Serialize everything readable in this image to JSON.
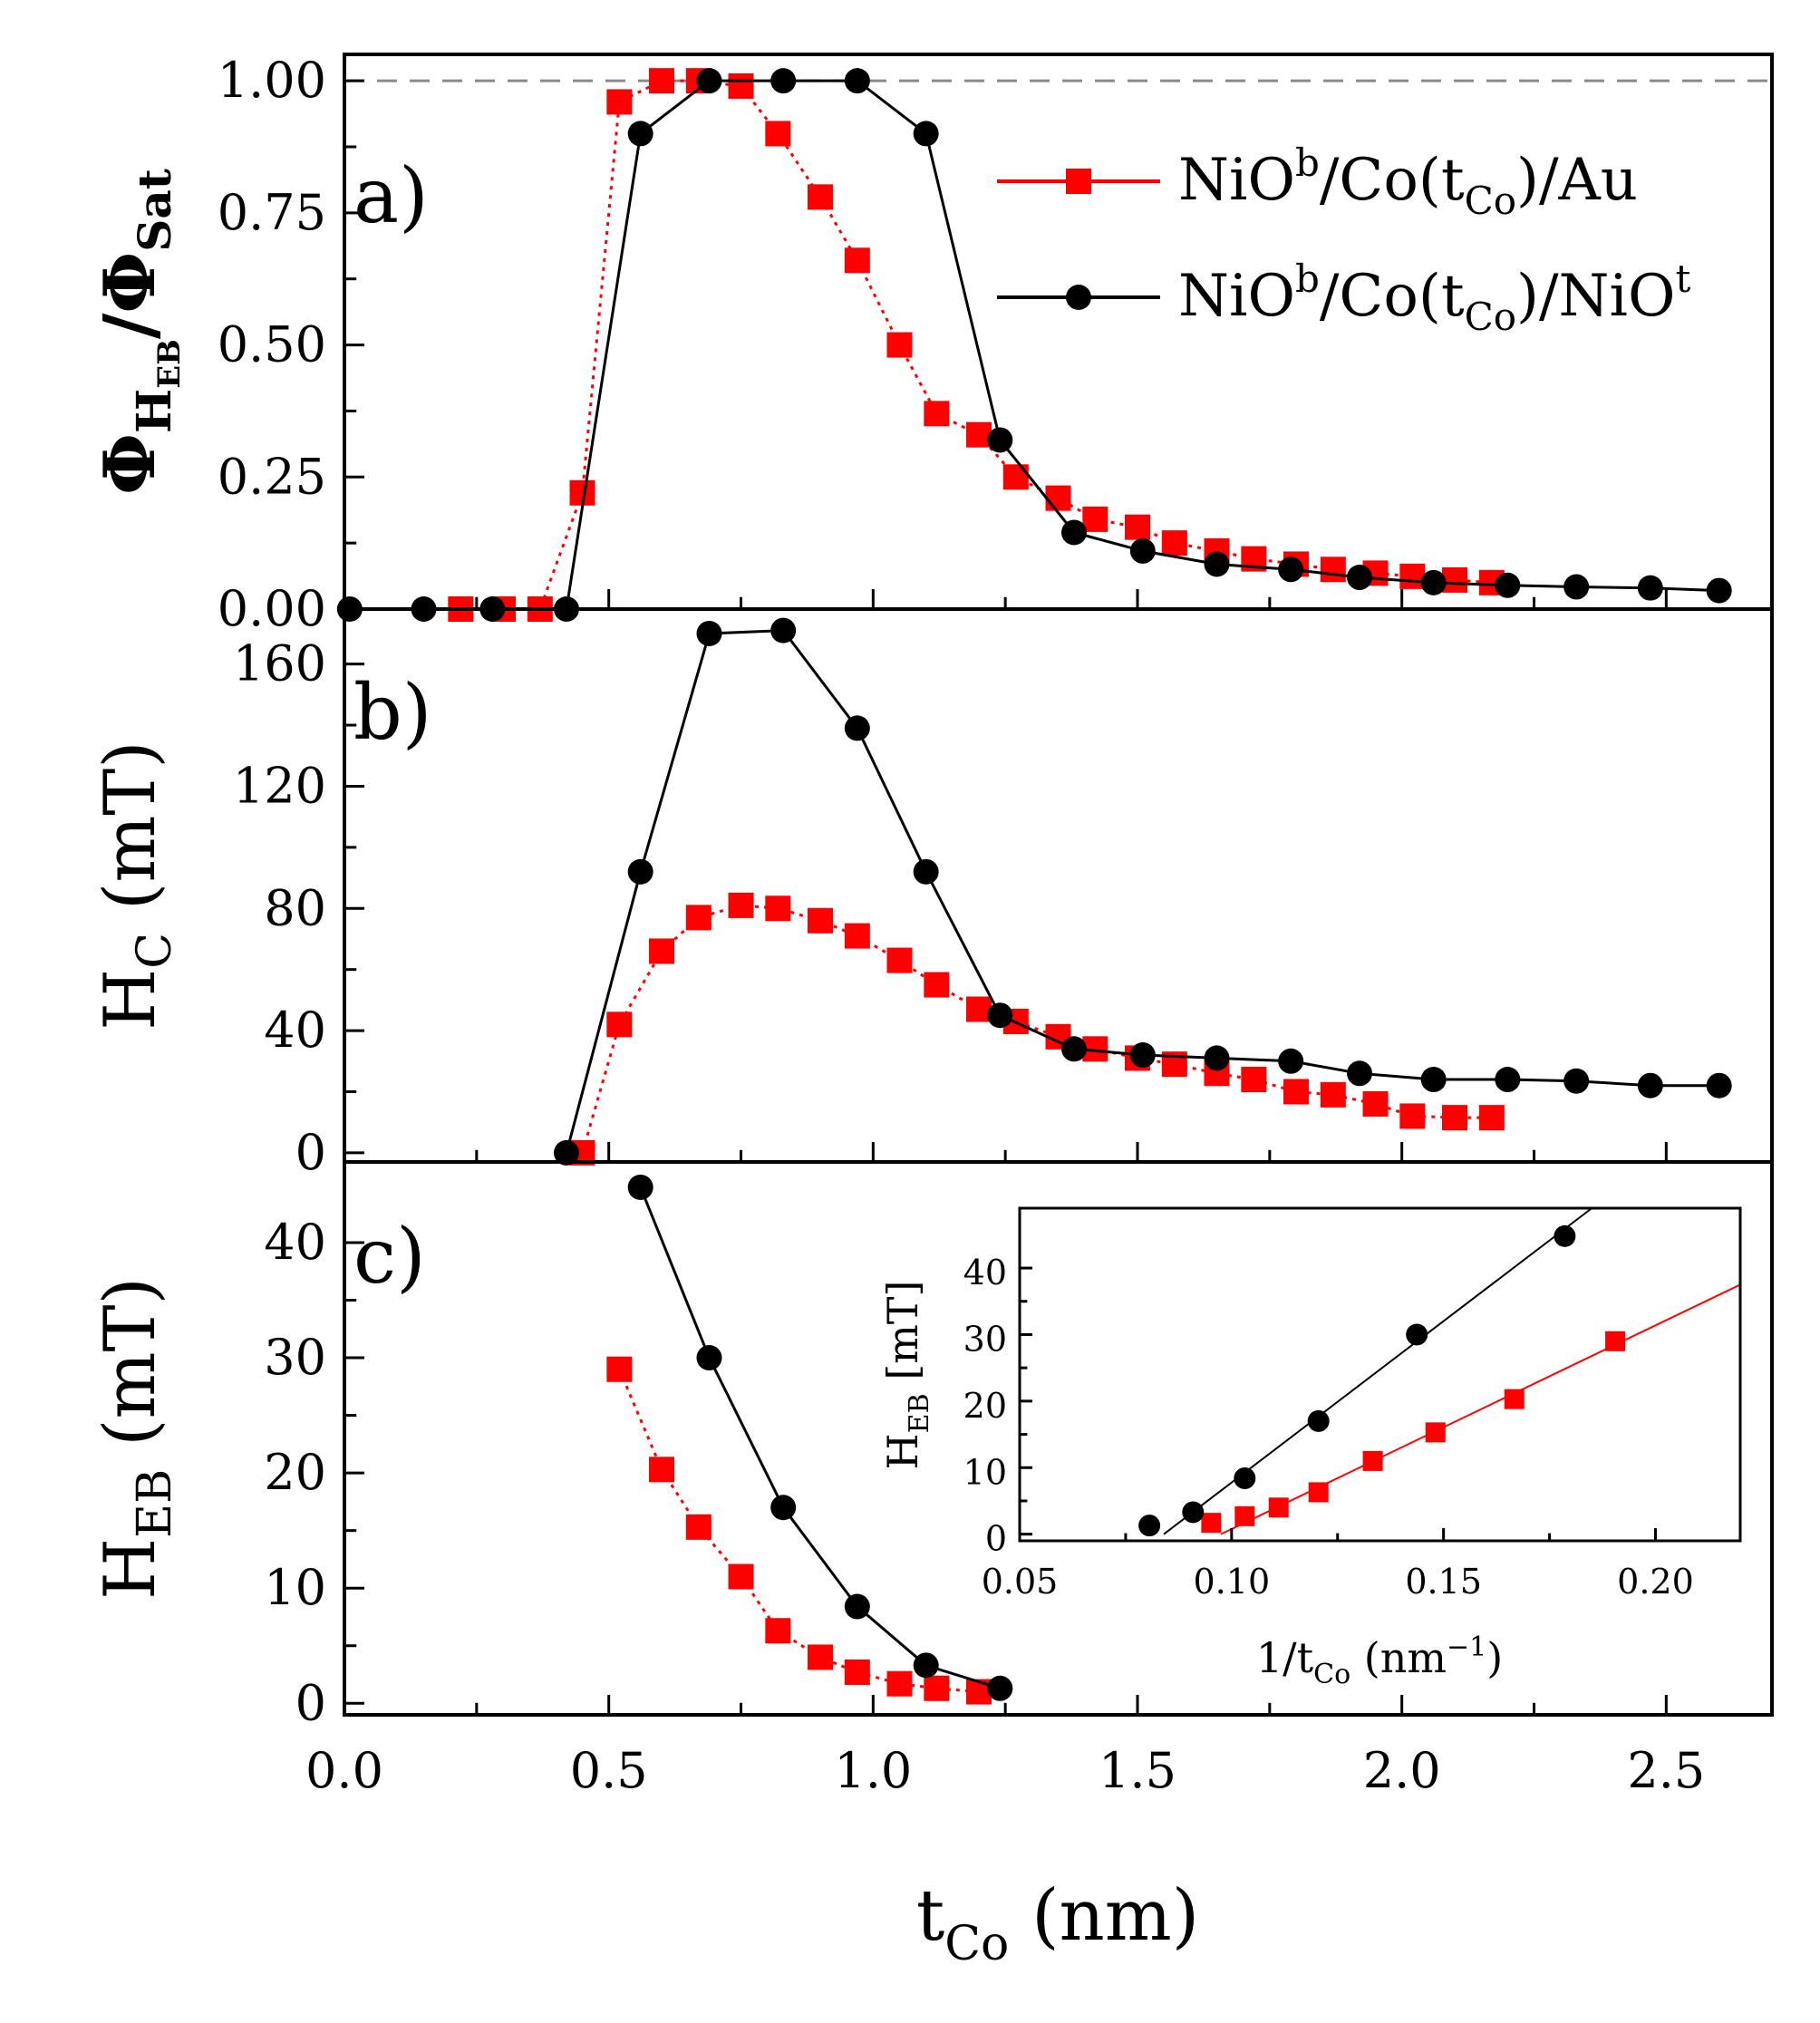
{
  "chart_data": [
    {
      "panel": "a)",
      "type": "line",
      "ylabel": {
        "main": "Φ",
        "sub1": "H",
        "sub2": "EB",
        "mid": "/Φ",
        "sub3": "Sat"
      },
      "xlim": [
        0,
        2.7
      ],
      "ylim": [
        0,
        1.05
      ],
      "yticks": [
        0,
        0.25,
        0.5,
        0.75,
        1.0
      ],
      "ytick_labels": [
        "0.00",
        "0.25",
        "0.50",
        "0.75",
        "1.00"
      ],
      "reference_line": {
        "y": 1.0,
        "style": "dashed",
        "color": "#8a8a8a"
      },
      "legend": {
        "position": "top-right",
        "entries": [
          {
            "series": "NiO/Co/Au",
            "parts": [
              "NiO",
              "b",
              "/Co(t",
              "Co",
              ")/Au"
            ]
          },
          {
            "series": "NiO/Co/NiO",
            "parts": [
              "NiO",
              "b",
              "/Co(t",
              "Co",
              ")/NiO",
              "t"
            ]
          }
        ]
      },
      "series": [
        {
          "name": "NiO/Co/Au",
          "color": "#ff0000",
          "marker": "square",
          "linestyle": "dotted",
          "x": [
            0.22,
            0.3,
            0.37,
            0.45,
            0.52,
            0.6,
            0.67,
            0.75,
            0.82,
            0.9,
            0.97,
            1.05,
            1.12,
            1.2,
            1.27,
            1.35,
            1.42,
            1.5,
            1.57,
            1.65,
            1.72,
            1.8,
            1.87,
            1.95,
            2.02,
            2.1,
            2.17
          ],
          "y": [
            0.0,
            0.0,
            0.0,
            0.22,
            0.96,
            1.0,
            1.0,
            0.99,
            0.9,
            0.78,
            0.66,
            0.5,
            0.37,
            0.33,
            0.25,
            0.21,
            0.17,
            0.155,
            0.125,
            0.11,
            0.095,
            0.085,
            0.075,
            0.068,
            0.062,
            0.055,
            0.05
          ]
        },
        {
          "name": "NiO/Co/NiO",
          "color": "#000000",
          "marker": "circle",
          "linestyle": "solid",
          "x": [
            0.01,
            0.15,
            0.28,
            0.42,
            0.56,
            0.69,
            0.83,
            0.97,
            1.1,
            1.24,
            1.38,
            1.51,
            1.65,
            1.79,
            1.92,
            2.06,
            2.2,
            2.33,
            2.47,
            2.6
          ],
          "y": [
            0.0,
            0.0,
            0.0,
            0.0,
            0.9,
            1.0,
            1.0,
            1.0,
            0.9,
            0.32,
            0.145,
            0.11,
            0.085,
            0.075,
            0.06,
            0.05,
            0.045,
            0.042,
            0.04,
            0.035
          ]
        }
      ]
    },
    {
      "panel": "b)",
      "type": "line",
      "ylabel": {
        "main": "H",
        "sub": "C",
        "rest": " (mT)"
      },
      "xlim": [
        0,
        2.7
      ],
      "ylim": [
        -3,
        178
      ],
      "yticks": [
        0,
        40,
        80,
        120,
        160
      ],
      "ytick_labels": [
        "0",
        "40",
        "80",
        "120",
        "160"
      ],
      "series": [
        {
          "name": "NiO/Co/Au",
          "color": "#ff0000",
          "marker": "square",
          "linestyle": "dotted",
          "x": [
            0.45,
            0.52,
            0.6,
            0.67,
            0.75,
            0.82,
            0.9,
            0.97,
            1.05,
            1.12,
            1.2,
            1.27,
            1.35,
            1.42,
            1.5,
            1.57,
            1.65,
            1.72,
            1.8,
            1.87,
            1.95,
            2.02,
            2.1,
            2.17
          ],
          "y": [
            0,
            42,
            66,
            77,
            81,
            80,
            76,
            71,
            63,
            55,
            47,
            43,
            38,
            34,
            31,
            29,
            26,
            24,
            20,
            19,
            16,
            12,
            11.5,
            11.5
          ]
        },
        {
          "name": "NiO/Co/NiO",
          "color": "#000000",
          "marker": "circle",
          "linestyle": "solid",
          "x": [
            0.42,
            0.56,
            0.69,
            0.83,
            0.97,
            1.1,
            1.24,
            1.38,
            1.51,
            1.65,
            1.79,
            1.92,
            2.06,
            2.2,
            2.33,
            2.47,
            2.6
          ],
          "y": [
            0,
            92,
            170,
            171,
            139,
            92,
            45,
            34,
            32,
            31,
            30,
            26,
            24,
            24,
            23.5,
            22,
            22
          ]
        }
      ]
    },
    {
      "panel": "c)",
      "type": "line",
      "ylabel": {
        "main": "H",
        "sub": "EB",
        "rest": " (mT)"
      },
      "xlabel": {
        "main": "t",
        "sub": "Co",
        "rest": " (nm)"
      },
      "xlim": [
        0,
        2.7
      ],
      "ylim": [
        -1,
        47
      ],
      "xticks": [
        0,
        0.5,
        1.0,
        1.5,
        2.0,
        2.5
      ],
      "xtick_labels": [
        "0.0",
        "0.5",
        "1.0",
        "1.5",
        "2.0",
        "2.5"
      ],
      "yticks": [
        0,
        10,
        20,
        30,
        40
      ],
      "ytick_labels": [
        "0",
        "10",
        "20",
        "30",
        "40"
      ],
      "series": [
        {
          "name": "NiO/Co/Au",
          "color": "#ff0000",
          "marker": "square",
          "linestyle": "dotted",
          "x": [
            0.52,
            0.6,
            0.67,
            0.75,
            0.82,
            0.9,
            0.97,
            1.05,
            1.12,
            1.2
          ],
          "y": [
            29,
            20.3,
            15.3,
            11,
            6.3,
            4,
            2.7,
            1.7,
            1.3,
            1.0
          ]
        },
        {
          "name": "NiO/Co/NiO",
          "color": "#000000",
          "marker": "circle",
          "linestyle": "solid",
          "x": [
            0.56,
            0.69,
            0.83,
            0.97,
            1.1,
            1.24
          ],
          "y": [
            44.8,
            30,
            17,
            8.4,
            3.3,
            1.3
          ]
        }
      ]
    },
    {
      "panel": "inset",
      "type": "scatter",
      "ylabel": {
        "main": "H",
        "sub": "EB",
        "rest": " [mT]"
      },
      "xlabel": {
        "pre": "1/t",
        "sub": "Co",
        "mid": " (nm",
        "sup": "−1",
        "end": ")"
      },
      "xlim": [
        0.05,
        0.22
      ],
      "ylim": [
        -1,
        49
      ],
      "xticks": [
        0.05,
        0.1,
        0.15,
        0.2
      ],
      "xtick_labels": [
        "0.05",
        "0.10",
        "0.15",
        "0.20"
      ],
      "yticks": [
        0,
        10,
        20,
        30,
        40
      ],
      "ytick_labels": [
        "0",
        "10",
        "20",
        "30",
        "40"
      ],
      "series": [
        {
          "name": "NiO/Co/Au",
          "color": "#ff0000",
          "marker": "square",
          "x": [
            0.0952,
            0.1031,
            0.1111,
            0.1205,
            0.1333,
            0.1481,
            0.1667,
            0.1905
          ],
          "y": [
            1.7,
            2.7,
            4.0,
            6.3,
            11.0,
            15.3,
            20.3,
            29.0
          ],
          "fit": {
            "x": [
              0.0975,
              0.22
            ],
            "y": [
              0.0,
              37.5
            ]
          }
        },
        {
          "name": "NiO/Co/NiO",
          "color": "#000000",
          "marker": "circle",
          "x": [
            0.0806,
            0.0909,
            0.1031,
            0.1205,
            0.1437,
            0.1786
          ],
          "y": [
            1.3,
            3.3,
            8.4,
            17.0,
            30.0,
            44.8
          ],
          "fit": {
            "x": [
              0.084,
              0.185
            ],
            "y": [
              0.0,
              49.0
            ]
          }
        }
      ]
    }
  ]
}
